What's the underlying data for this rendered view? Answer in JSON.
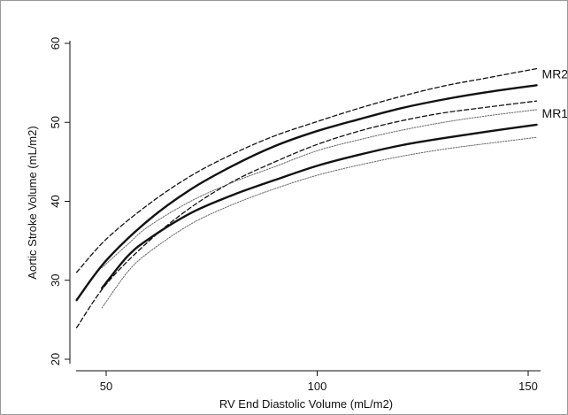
{
  "chart_data": {
    "type": "line",
    "xlabel": "RV End Diastolic Volume (mL/m2)",
    "ylabel": "Aortic Stroke Volume (mL/m2)",
    "xlim": [
      40,
      160
    ],
    "ylim": [
      20,
      60
    ],
    "xticks": [
      50,
      100,
      150
    ],
    "yticks": [
      20,
      30,
      40,
      50,
      60
    ],
    "grid": false,
    "legend": "none",
    "series": [
      {
        "name": "MR2",
        "style": "solid",
        "x": [
          43,
          50,
          60,
          70,
          80,
          90,
          100,
          110,
          120,
          130,
          140,
          152
        ],
        "y": [
          27.5,
          32.5,
          37.6,
          41.5,
          44.5,
          47.0,
          48.9,
          50.4,
          51.8,
          52.9,
          53.8,
          54.7
        ]
      },
      {
        "name": "",
        "style": "dashed",
        "x": [
          43,
          50,
          60,
          70,
          80,
          90,
          100,
          110,
          120,
          130,
          140,
          152
        ],
        "y": [
          31.0,
          35.2,
          39.6,
          43.2,
          46.0,
          48.3,
          50.1,
          51.8,
          53.3,
          54.6,
          55.6,
          56.8
        ]
      },
      {
        "name": "",
        "style": "dashed",
        "x": [
          43,
          50,
          60,
          70,
          80,
          90,
          100,
          110,
          120,
          130,
          140,
          152
        ],
        "y": [
          24.0,
          29.5,
          34.9,
          39.2,
          42.5,
          45.0,
          47.2,
          48.9,
          50.2,
          51.2,
          51.9,
          52.7
        ]
      },
      {
        "name": "MR1",
        "style": "solid",
        "x": [
          49,
          55,
          60,
          70,
          80,
          90,
          100,
          110,
          120,
          130,
          140,
          152
        ],
        "y": [
          29.0,
          33.0,
          35.2,
          38.5,
          40.8,
          42.7,
          44.5,
          45.9,
          47.1,
          48.0,
          48.8,
          49.7
        ]
      },
      {
        "name": "",
        "style": "dotted",
        "x": [
          49,
          55,
          60,
          70,
          80,
          90,
          100,
          110,
          120,
          130,
          140,
          152
        ],
        "y": [
          31.6,
          34.5,
          36.8,
          40.0,
          42.4,
          44.4,
          46.4,
          47.8,
          49.0,
          50.0,
          50.8,
          51.6
        ]
      },
      {
        "name": "",
        "style": "dotted",
        "x": [
          49,
          55,
          60,
          70,
          80,
          90,
          100,
          110,
          120,
          130,
          140,
          152
        ],
        "y": [
          26.5,
          31.0,
          33.5,
          37.1,
          39.6,
          41.6,
          43.3,
          44.6,
          45.7,
          46.6,
          47.3,
          48.1
        ]
      }
    ]
  }
}
